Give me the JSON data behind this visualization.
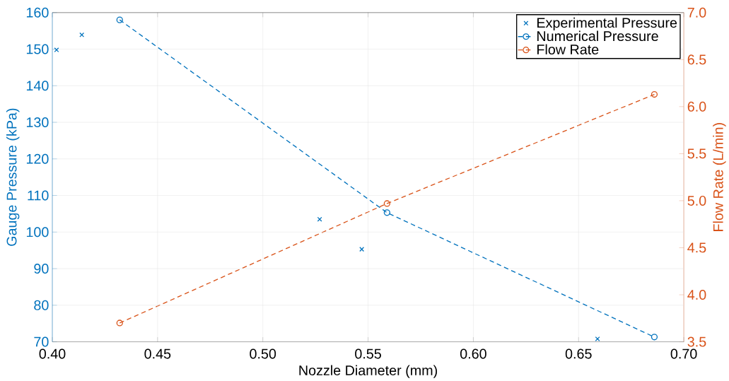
{
  "chart_data": {
    "type": "line",
    "xlabel": "Nozzle Diameter (mm)",
    "ylabel": "Gauge Pressure (kPa)",
    "y2label": "Flow Rate (L/min)",
    "xlim": [
      0.4,
      0.7
    ],
    "xticks": [
      {
        "value": 0.4,
        "label": "0.40"
      },
      {
        "value": 0.45,
        "label": "0.45"
      },
      {
        "value": 0.5,
        "label": "0.50"
      },
      {
        "value": 0.55,
        "label": "0.55"
      },
      {
        "value": 0.6,
        "label": "0.60"
      },
      {
        "value": 0.65,
        "label": "0.65"
      },
      {
        "value": 0.7,
        "label": "0.70"
      }
    ],
    "ylim": [
      70,
      160
    ],
    "yticks": [
      70,
      80,
      90,
      100,
      110,
      120,
      130,
      140,
      150,
      160
    ],
    "y2lim": [
      3.5,
      7.0
    ],
    "y2ticks": [
      {
        "value": 3.5,
        "label": "3.5"
      },
      {
        "value": 4.0,
        "label": "4.0"
      },
      {
        "value": 4.5,
        "label": "4.5"
      },
      {
        "value": 5.0,
        "label": "5.0"
      },
      {
        "value": 5.5,
        "label": "5.5"
      },
      {
        "value": 6.0,
        "label": "6.0"
      },
      {
        "value": 6.5,
        "label": "6.5"
      },
      {
        "value": 7.0,
        "label": "7.0"
      }
    ],
    "grid": true,
    "legend": "top right",
    "series": [
      {
        "name": "Experimental Pressure",
        "type": "scatter",
        "marker": "cross",
        "color": "#0072bd",
        "x": [
          0.402,
          0.414,
          0.527,
          0.547,
          0.659
        ],
        "values": [
          149.8,
          153.9,
          103.5,
          95.3,
          70.8
        ]
      },
      {
        "name": "Numerical Pressure",
        "marker": "circle",
        "line_style": "dashed",
        "color": "#0072bd",
        "x": [
          0.432,
          0.559,
          0.686
        ],
        "values": [
          158,
          105.3,
          71.3
        ]
      },
      {
        "name": "Flow Rate",
        "marker": "circle",
        "line_style": "dashed",
        "axis": "y2",
        "color": "#d95319",
        "x": [
          0.432,
          0.559,
          0.686
        ],
        "values": [
          3.7,
          4.97,
          6.13
        ]
      }
    ]
  }
}
